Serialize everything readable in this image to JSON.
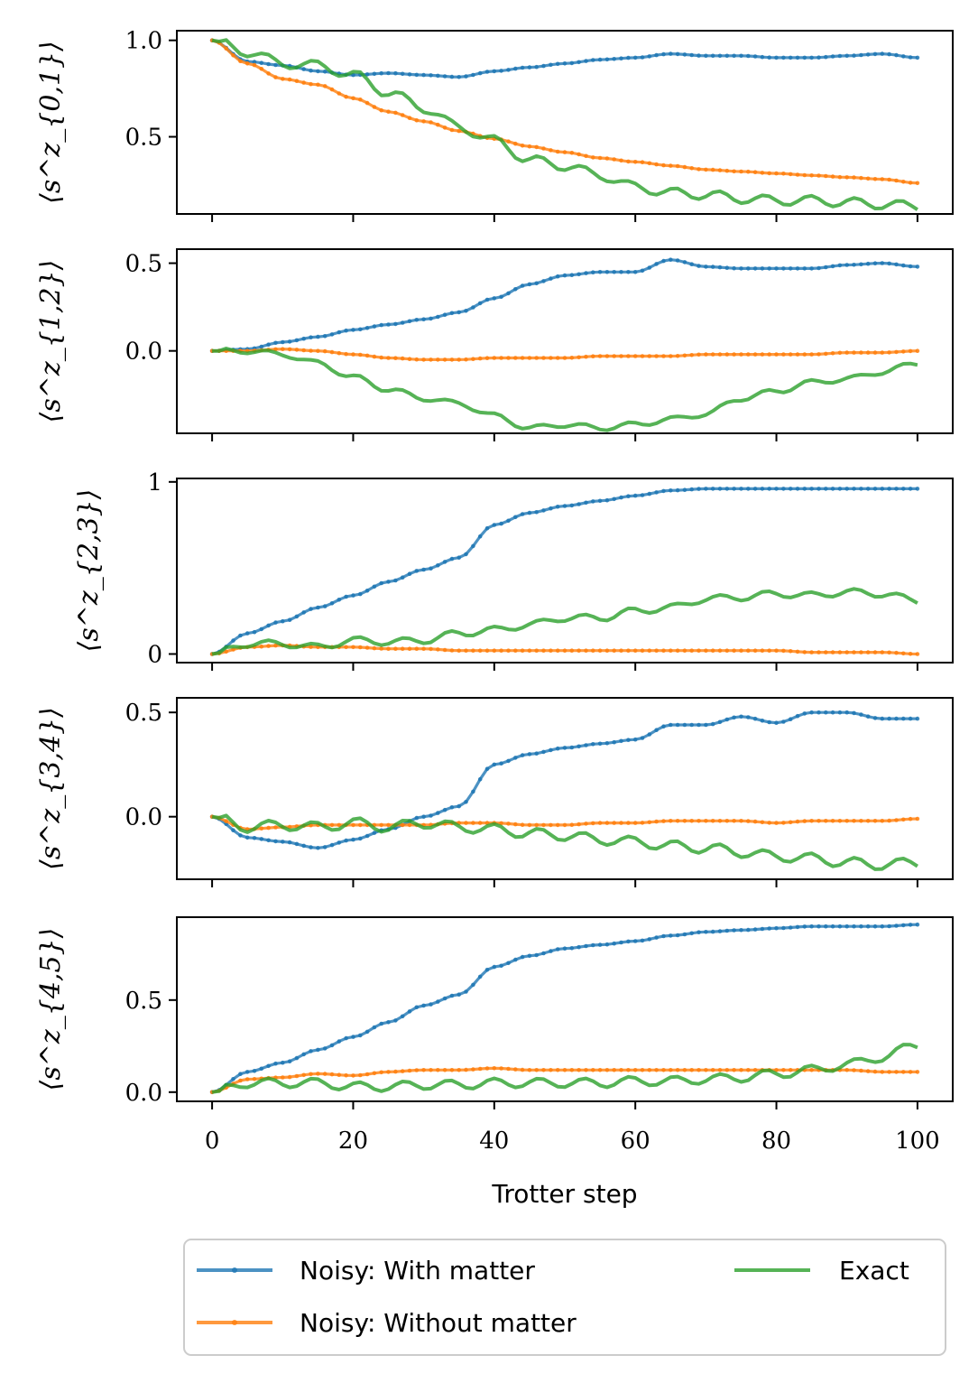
{
  "chart_data": [
    {
      "type": "line",
      "ylabel": "⟨s^z_{0,1}⟩",
      "ylim": [
        0.1,
        1.05
      ],
      "yticks": [
        0.5,
        1.0
      ],
      "ytick_labels": [
        "0.5",
        "1.0"
      ],
      "x_range": [
        0,
        100
      ],
      "series": [
        {
          "name": "Noisy: With matter",
          "x": [
            0,
            5,
            10,
            15,
            20,
            25,
            30,
            35,
            40,
            45,
            50,
            55,
            60,
            65,
            70,
            75,
            80,
            85,
            90,
            95,
            100
          ],
          "values": [
            1.0,
            0.89,
            0.87,
            0.84,
            0.82,
            0.83,
            0.82,
            0.81,
            0.84,
            0.86,
            0.88,
            0.9,
            0.91,
            0.93,
            0.92,
            0.92,
            0.91,
            0.91,
            0.92,
            0.93,
            0.91
          ]
        },
        {
          "name": "Noisy: Without matter",
          "x": [
            0,
            5,
            10,
            15,
            20,
            25,
            30,
            35,
            40,
            45,
            50,
            55,
            60,
            65,
            70,
            75,
            80,
            85,
            90,
            95,
            100
          ],
          "values": [
            1.0,
            0.88,
            0.8,
            0.77,
            0.7,
            0.63,
            0.58,
            0.53,
            0.49,
            0.45,
            0.42,
            0.39,
            0.37,
            0.35,
            0.33,
            0.32,
            0.31,
            0.3,
            0.29,
            0.28,
            0.26
          ]
        },
        {
          "name": "Exact",
          "x": [
            0,
            5,
            10,
            15,
            20,
            25,
            30,
            35,
            40,
            45,
            50,
            55,
            60,
            65,
            70,
            75,
            80,
            85,
            90,
            95,
            100
          ],
          "values": [
            1.0,
            0.94,
            0.88,
            0.87,
            0.82,
            0.73,
            0.65,
            0.55,
            0.48,
            0.38,
            0.35,
            0.3,
            0.24,
            0.21,
            0.2,
            0.18,
            0.17,
            0.17,
            0.16,
            0.15,
            0.14
          ]
        }
      ]
    },
    {
      "type": "line",
      "ylabel": "⟨s^z_{1,2}⟩",
      "ylim": [
        -0.47,
        0.58
      ],
      "yticks": [
        0.0,
        0.5
      ],
      "ytick_labels": [
        "0.0",
        "0.5"
      ],
      "x_range": [
        0,
        100
      ],
      "series": [
        {
          "name": "Noisy: With matter",
          "x": [
            0,
            5,
            10,
            15,
            20,
            25,
            30,
            35,
            40,
            45,
            50,
            55,
            60,
            65,
            70,
            75,
            80,
            85,
            90,
            95,
            100
          ],
          "values": [
            0.0,
            0.01,
            0.05,
            0.08,
            0.12,
            0.15,
            0.18,
            0.22,
            0.3,
            0.38,
            0.43,
            0.45,
            0.45,
            0.52,
            0.48,
            0.47,
            0.47,
            0.47,
            0.49,
            0.5,
            0.48
          ]
        },
        {
          "name": "Noisy: Without matter",
          "x": [
            0,
            5,
            10,
            15,
            20,
            25,
            30,
            35,
            40,
            45,
            50,
            55,
            60,
            65,
            70,
            75,
            80,
            85,
            90,
            95,
            100
          ],
          "values": [
            0.0,
            0.0,
            0.01,
            0.0,
            -0.02,
            -0.04,
            -0.05,
            -0.05,
            -0.04,
            -0.04,
            -0.04,
            -0.03,
            -0.03,
            -0.03,
            -0.02,
            -0.02,
            -0.02,
            -0.02,
            -0.01,
            -0.01,
            0.0
          ]
        },
        {
          "name": "Exact",
          "x": [
            0,
            5,
            10,
            15,
            20,
            25,
            30,
            35,
            40,
            45,
            50,
            55,
            60,
            65,
            70,
            75,
            80,
            85,
            90,
            95,
            100
          ],
          "values": [
            0.0,
            0.0,
            -0.02,
            -0.07,
            -0.15,
            -0.22,
            -0.27,
            -0.3,
            -0.37,
            -0.44,
            -0.42,
            -0.44,
            -0.42,
            -0.39,
            -0.36,
            -0.27,
            -0.23,
            -0.18,
            -0.16,
            -0.12,
            -0.07
          ]
        }
      ]
    },
    {
      "type": "line",
      "ylabel": "⟨s^z_{2,3}⟩",
      "ylim": [
        -0.05,
        1.02
      ],
      "yticks": [
        0,
        1
      ],
      "ytick_labels": [
        "0",
        "1"
      ],
      "x_range": [
        0,
        100
      ],
      "series": [
        {
          "name": "Noisy: With matter",
          "x": [
            0,
            5,
            10,
            15,
            20,
            25,
            30,
            35,
            40,
            45,
            50,
            55,
            60,
            65,
            70,
            75,
            80,
            85,
            90,
            95,
            100
          ],
          "values": [
            0.0,
            0.12,
            0.19,
            0.27,
            0.34,
            0.42,
            0.49,
            0.56,
            0.75,
            0.82,
            0.86,
            0.89,
            0.92,
            0.95,
            0.96,
            0.96,
            0.96,
            0.96,
            0.96,
            0.96,
            0.96
          ]
        },
        {
          "name": "Noisy: Without matter",
          "x": [
            0,
            5,
            10,
            15,
            20,
            25,
            30,
            35,
            40,
            45,
            50,
            55,
            60,
            65,
            70,
            75,
            80,
            85,
            90,
            95,
            100
          ],
          "values": [
            0.0,
            0.04,
            0.05,
            0.04,
            0.04,
            0.03,
            0.03,
            0.02,
            0.02,
            0.02,
            0.02,
            0.02,
            0.02,
            0.02,
            0.02,
            0.02,
            0.02,
            0.01,
            0.01,
            0.01,
            0.0
          ]
        },
        {
          "name": "Exact",
          "x": [
            0,
            5,
            10,
            15,
            20,
            25,
            30,
            35,
            40,
            45,
            50,
            55,
            60,
            65,
            70,
            75,
            80,
            85,
            90,
            95,
            100
          ],
          "values": [
            0.0,
            0.06,
            0.06,
            0.04,
            0.08,
            0.07,
            0.08,
            0.12,
            0.14,
            0.17,
            0.21,
            0.21,
            0.25,
            0.27,
            0.32,
            0.33,
            0.35,
            0.34,
            0.36,
            0.35,
            0.31
          ]
        }
      ]
    },
    {
      "type": "line",
      "ylabel": "⟨s^z_{3,4}⟩",
      "ylim": [
        -0.3,
        0.57
      ],
      "yticks": [
        0.0,
        0.5
      ],
      "ytick_labels": [
        "0.0",
        "0.5"
      ],
      "x_range": [
        0,
        100
      ],
      "series": [
        {
          "name": "Noisy: With matter",
          "x": [
            0,
            5,
            10,
            15,
            20,
            25,
            30,
            35,
            40,
            45,
            50,
            55,
            60,
            65,
            70,
            75,
            80,
            85,
            90,
            95,
            100
          ],
          "values": [
            0.0,
            -0.1,
            -0.12,
            -0.15,
            -0.11,
            -0.06,
            0.0,
            0.05,
            0.25,
            0.3,
            0.33,
            0.35,
            0.37,
            0.44,
            0.44,
            0.48,
            0.45,
            0.5,
            0.5,
            0.47,
            0.47
          ]
        },
        {
          "name": "Noisy: Without matter",
          "x": [
            0,
            5,
            10,
            15,
            20,
            25,
            30,
            35,
            40,
            45,
            50,
            55,
            60,
            65,
            70,
            75,
            80,
            85,
            90,
            95,
            100
          ],
          "values": [
            0.0,
            -0.06,
            -0.05,
            -0.04,
            -0.04,
            -0.04,
            -0.04,
            -0.03,
            -0.03,
            -0.04,
            -0.04,
            -0.03,
            -0.03,
            -0.02,
            -0.02,
            -0.02,
            -0.03,
            -0.02,
            -0.02,
            -0.02,
            -0.01
          ]
        },
        {
          "name": "Exact",
          "x": [
            0,
            5,
            10,
            15,
            20,
            25,
            30,
            35,
            40,
            45,
            50,
            55,
            60,
            65,
            70,
            75,
            80,
            85,
            90,
            95,
            100
          ],
          "values": [
            0.0,
            -0.05,
            -0.04,
            -0.05,
            -0.03,
            -0.05,
            -0.03,
            -0.05,
            -0.06,
            -0.08,
            -0.09,
            -0.11,
            -0.12,
            -0.14,
            -0.15,
            -0.17,
            -0.19,
            -0.2,
            -0.22,
            -0.23,
            -0.22
          ]
        }
      ]
    },
    {
      "type": "line",
      "ylabel": "⟨s^z_{4,5}⟩",
      "ylim": [
        -0.05,
        0.95
      ],
      "yticks": [
        0.0,
        0.5
      ],
      "ytick_labels": [
        "0.0",
        "0.5"
      ],
      "xlabel": "Trotter step",
      "xlim": [
        -5,
        105
      ],
      "xticks": [
        0,
        20,
        40,
        60,
        80,
        100
      ],
      "xtick_labels": [
        "0",
        "20",
        "40",
        "60",
        "80",
        "100"
      ],
      "series": [
        {
          "name": "Noisy: With matter",
          "x": [
            0,
            5,
            10,
            15,
            20,
            25,
            30,
            35,
            40,
            45,
            50,
            55,
            60,
            65,
            70,
            75,
            80,
            85,
            90,
            95,
            100
          ],
          "values": [
            0.0,
            0.11,
            0.16,
            0.23,
            0.3,
            0.38,
            0.47,
            0.53,
            0.68,
            0.74,
            0.78,
            0.8,
            0.82,
            0.85,
            0.87,
            0.88,
            0.89,
            0.9,
            0.9,
            0.9,
            0.91
          ]
        },
        {
          "name": "Noisy: Without matter",
          "x": [
            0,
            5,
            10,
            15,
            20,
            25,
            30,
            35,
            40,
            45,
            50,
            55,
            60,
            65,
            70,
            75,
            80,
            85,
            90,
            95,
            100
          ],
          "values": [
            0.0,
            0.07,
            0.08,
            0.1,
            0.09,
            0.11,
            0.12,
            0.12,
            0.13,
            0.12,
            0.12,
            0.12,
            0.12,
            0.12,
            0.12,
            0.12,
            0.12,
            0.12,
            0.12,
            0.11,
            0.11
          ]
        },
        {
          "name": "Exact",
          "x": [
            0,
            5,
            10,
            15,
            20,
            25,
            30,
            35,
            40,
            45,
            50,
            55,
            60,
            65,
            70,
            75,
            80,
            85,
            90,
            95,
            100
          ],
          "values": [
            0.0,
            0.05,
            0.05,
            0.05,
            0.03,
            0.03,
            0.04,
            0.04,
            0.05,
            0.05,
            0.05,
            0.05,
            0.06,
            0.06,
            0.07,
            0.08,
            0.1,
            0.12,
            0.15,
            0.19,
            0.26
          ]
        }
      ]
    }
  ],
  "legend": {
    "placement": "bottom-center",
    "entries": [
      "Noisy: With matter",
      "Noisy: Without matter",
      "Exact"
    ]
  },
  "colors": {
    "with_matter": "#1f77b4",
    "without_matter": "#ff7f0e",
    "exact": "#2ca02c"
  }
}
